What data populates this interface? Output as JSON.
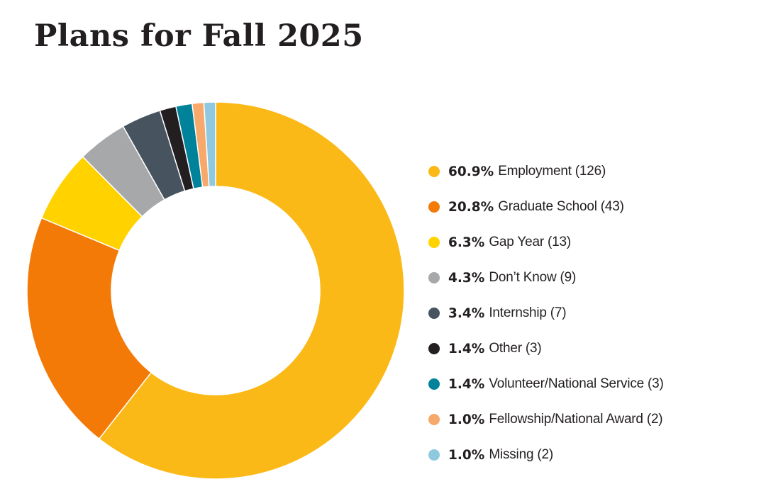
{
  "title": "Plans for Fall 2025",
  "chart_data": {
    "type": "pie",
    "style": "donut",
    "title": "Plans for Fall 2025",
    "legend_position": "right",
    "start_angle_deg": 0,
    "direction": "clockwise",
    "slices": [
      {
        "label": "Employment",
        "percent": 60.9,
        "count": 126,
        "percent_text": "60.9%",
        "count_text": "(126)",
        "color": "#fbb917"
      },
      {
        "label": "Graduate School",
        "percent": 20.8,
        "count": 43,
        "percent_text": "20.8%",
        "count_text": "(43)",
        "color": "#f47a07"
      },
      {
        "label": "Gap Year",
        "percent": 6.3,
        "count": 13,
        "percent_text": "6.3%",
        "count_text": "(13)",
        "color": "#ffd200"
      },
      {
        "label": "Don’t Know",
        "percent": 4.3,
        "count": 9,
        "percent_text": "4.3%",
        "count_text": "(9)",
        "color": "#a7a8aa"
      },
      {
        "label": "Internship",
        "percent": 3.4,
        "count": 7,
        "percent_text": "3.4%",
        "count_text": "(7)",
        "color": "#47545f"
      },
      {
        "label": "Other",
        "percent": 1.4,
        "count": 3,
        "percent_text": "1.4%",
        "count_text": "(3)",
        "color": "#231f20"
      },
      {
        "label": "Volunteer/National Service",
        "percent": 1.4,
        "count": 3,
        "percent_text": "1.4%",
        "count_text": "(3)",
        "color": "#00829b"
      },
      {
        "label": "Fellowship/National Award",
        "percent": 1.0,
        "count": 2,
        "percent_text": "1.0%",
        "count_text": "(2)",
        "color": "#f7a86b"
      },
      {
        "label": "Missing",
        "percent": 1.0,
        "count": 2,
        "percent_text": "1.0%",
        "count_text": "(2)",
        "color": "#8ec9e0"
      }
    ]
  }
}
